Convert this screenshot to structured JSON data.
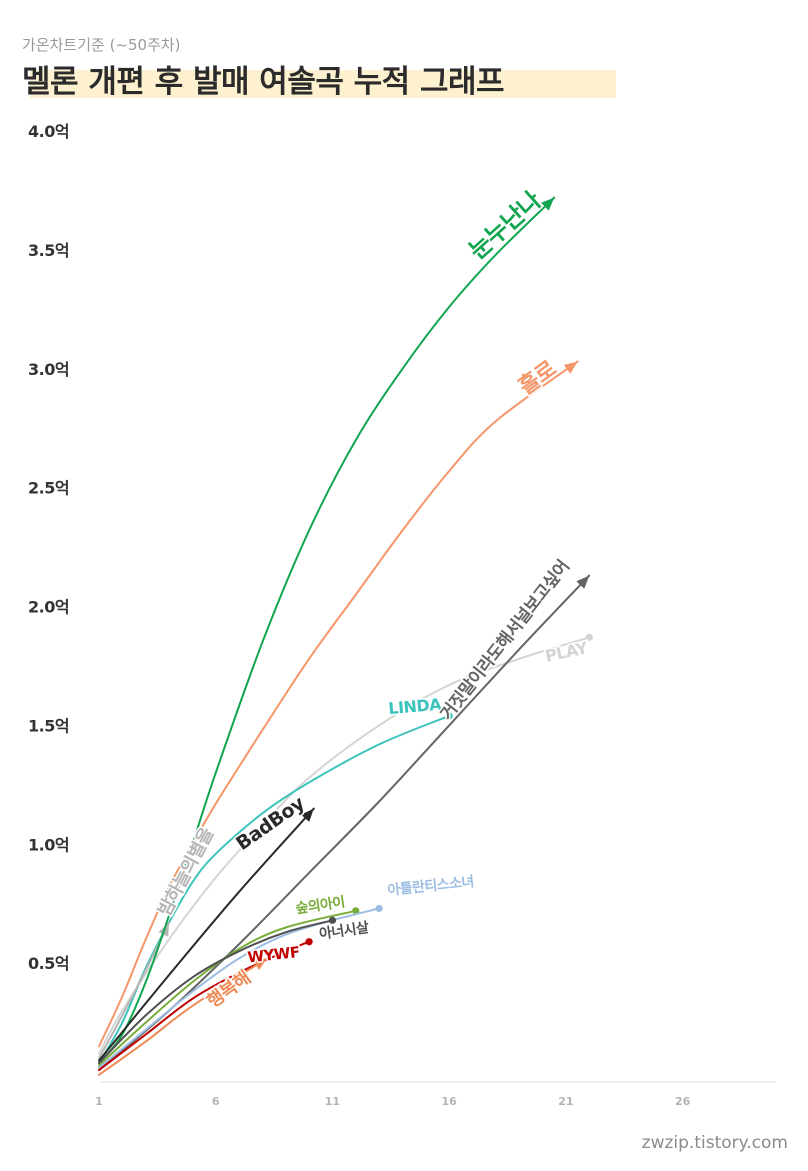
{
  "header": {
    "subtitle": "가온차트기준 (~50주차)",
    "title": "멜론 개편 후 발매 여솔곡 누적 그래프"
  },
  "watermark": "zwzip.tistory.com",
  "chart_data": {
    "type": "line",
    "xlim": [
      1,
      30
    ],
    "ylim": [
      0,
      4.0
    ],
    "x_ticks": [
      1,
      6,
      11,
      16,
      21,
      26
    ],
    "y_ticks": [
      0.5,
      1.0,
      1.5,
      2.0,
      2.5,
      3.0,
      3.5,
      4.0
    ],
    "y_tick_labels": [
      "0.5억",
      "1.0억",
      "1.5억",
      "2.0억",
      "2.5억",
      "3.0억",
      "3.5억",
      "4.0억"
    ],
    "grid": false,
    "series": [
      {
        "name": "PLAY",
        "color": "#d4d4d4",
        "ends_with": "dot",
        "x": [
          1,
          2,
          4,
          6,
          8,
          10,
          13,
          16,
          19,
          22
        ],
        "y": [
          0.12,
          0.3,
          0.6,
          0.86,
          1.08,
          1.28,
          1.5,
          1.67,
          1.78,
          1.87
        ]
      },
      {
        "name": "LINDA",
        "color": "#3cc4bc",
        "ends_with": "dot",
        "x": [
          1,
          2,
          3,
          4,
          5,
          6,
          8,
          10,
          13,
          16
        ],
        "y": [
          0.08,
          0.25,
          0.48,
          0.67,
          0.84,
          0.96,
          1.13,
          1.26,
          1.42,
          1.54
        ]
      },
      {
        "name": "밤하늘의별을",
        "color": "#b6b6b6",
        "ends_with": "arrow",
        "x": [
          1,
          2,
          3,
          4
        ],
        "y": [
          0.1,
          0.28,
          0.47,
          0.67
        ]
      },
      {
        "name": "눈누난나",
        "color": "#12a550",
        "ends_with": "arrow",
        "x": [
          1,
          2,
          3,
          4,
          5,
          6,
          8,
          10,
          12,
          14,
          16,
          18,
          20.5
        ],
        "y": [
          0.08,
          0.2,
          0.42,
          0.7,
          1.0,
          1.3,
          1.85,
          2.32,
          2.7,
          3.0,
          3.26,
          3.48,
          3.72
        ]
      },
      {
        "name": "홀로",
        "color": "#f5966a",
        "ends_with": "arrow",
        "x": [
          1,
          2,
          3,
          4,
          5,
          6,
          8,
          10,
          12,
          14,
          16,
          18,
          21.5
        ],
        "y": [
          0.15,
          0.36,
          0.6,
          0.82,
          1.0,
          1.17,
          1.48,
          1.78,
          2.05,
          2.32,
          2.57,
          2.78,
          3.03
        ]
      },
      {
        "name": "거짓말이라도해서널보고싶어",
        "color": "#646464",
        "ends_with": "arrow",
        "x": [
          1,
          4,
          7,
          10,
          13,
          16,
          19,
          22
        ],
        "y": [
          0.05,
          0.3,
          0.58,
          0.88,
          1.18,
          1.5,
          1.82,
          2.13
        ]
      },
      {
        "name": "BadBoy",
        "color": "#2a2a2a",
        "ends_with": "arrow",
        "x": [
          1,
          4,
          7,
          10.2
        ],
        "y": [
          0.09,
          0.45,
          0.8,
          1.15
        ]
      },
      {
        "name": "숲의아이",
        "color": "#78ad3a",
        "ends_with": "dot",
        "x": [
          1,
          3,
          5,
          7,
          9,
          12
        ],
        "y": [
          0.07,
          0.25,
          0.42,
          0.56,
          0.65,
          0.72
        ]
      },
      {
        "name": "아틀란티스소녀",
        "color": "#9dbde3",
        "ends_with": "dot",
        "x": [
          1,
          3,
          5,
          7,
          9,
          11,
          13
        ],
        "y": [
          0.06,
          0.22,
          0.38,
          0.52,
          0.62,
          0.68,
          0.73
        ]
      },
      {
        "name": "아너시살",
        "color": "#505050",
        "ends_with": "dot",
        "x": [
          1,
          3,
          5,
          7,
          9,
          11
        ],
        "y": [
          0.08,
          0.28,
          0.44,
          0.55,
          0.63,
          0.68
        ]
      },
      {
        "name": "WYWF",
        "color": "#c00000",
        "ends_with": "dot",
        "x": [
          1,
          3,
          5,
          7,
          9,
          10
        ],
        "y": [
          0.05,
          0.2,
          0.35,
          0.46,
          0.55,
          0.59
        ]
      },
      {
        "name": "행복해",
        "color": "#f08a55",
        "ends_with": "arrow",
        "x": [
          1,
          3,
          5,
          8.2
        ],
        "y": [
          0.03,
          0.17,
          0.32,
          0.52
        ]
      }
    ]
  }
}
